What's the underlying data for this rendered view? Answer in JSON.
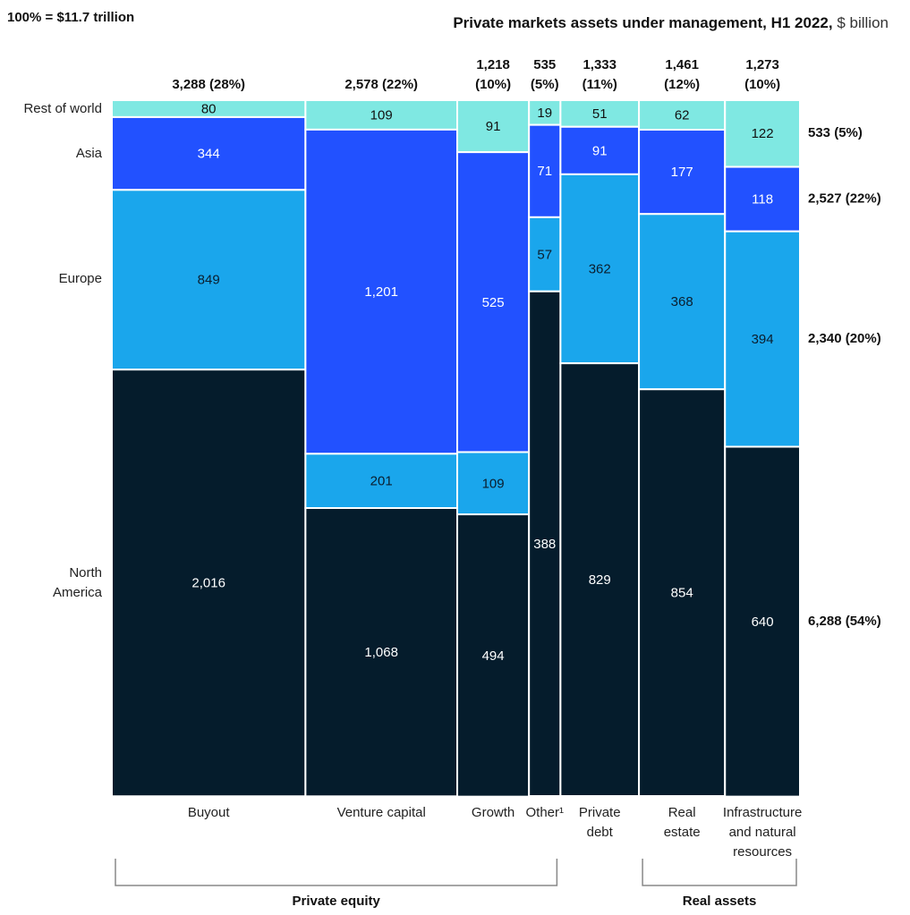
{
  "header": {
    "total_note": "100% = $11.7 trillion",
    "title": "Private markets assets under management, H1 2022,",
    "unit": "$ billion"
  },
  "chart_data": {
    "type": "marimekko",
    "title": "Private markets assets under management, H1 2022",
    "unit": "$ billion",
    "total_label": "100% = $11.7 trillion",
    "segments": [
      "Rest of world",
      "Asia",
      "Europe",
      "North America"
    ],
    "segment_colors": {
      "Rest of world": "#7fe8e2",
      "Asia": "#2251ff",
      "Europe": "#1aa6ec",
      "North America": "#051c2c"
    },
    "categories": [
      {
        "name": "Buyout",
        "label_lines": [
          "Buyout"
        ],
        "total_label": [
          "3,288 (28%)"
        ],
        "total": 3288,
        "values": {
          "Rest of world": 80,
          "Asia": 344,
          "Europe": 849,
          "North America": 2016
        }
      },
      {
        "name": "Venture capital",
        "label_lines": [
          "Venture capital"
        ],
        "total_label": [
          "2,578 (22%)"
        ],
        "total": 2578,
        "values": {
          "Rest of world": 109,
          "Asia": 1201,
          "Europe": 201,
          "North America": 1068
        }
      },
      {
        "name": "Growth",
        "label_lines": [
          "Growth"
        ],
        "total_label": [
          "1,218",
          "(10%)"
        ],
        "total": 1218,
        "values": {
          "Rest of world": 91,
          "Asia": 525,
          "Europe": 109,
          "North America": 494
        }
      },
      {
        "name": "Other",
        "label_lines": [
          "Other¹"
        ],
        "total_label": [
          "535",
          "(5%)"
        ],
        "total": 535,
        "values": {
          "Rest of world": 19,
          "Asia": 71,
          "Europe": 57,
          "North America": 388
        }
      },
      {
        "name": "Private debt",
        "label_lines": [
          "Private",
          "debt"
        ],
        "total_label": [
          "1,333",
          "(11%)"
        ],
        "total": 1333,
        "values": {
          "Rest of world": 51,
          "Asia": 91,
          "Europe": 362,
          "North America": 829
        }
      },
      {
        "name": "Real estate",
        "label_lines": [
          "Real",
          "estate"
        ],
        "total_label": [
          "1,461",
          "(12%)"
        ],
        "total": 1461,
        "values": {
          "Rest of world": 62,
          "Asia": 177,
          "Europe": 368,
          "North America": 854
        }
      },
      {
        "name": "Infrastructure and natural resources",
        "label_lines": [
          "Infrastructure",
          "and natural",
          "resources"
        ],
        "total_label": [
          "1,273",
          "(10%)"
        ],
        "total": 1273,
        "values": {
          "Rest of world": 122,
          "Asia": 118,
          "Europe": 394,
          "North America": 640
        }
      }
    ],
    "row_labels": [
      {
        "segment": "Rest of world",
        "lines": [
          "Rest of world"
        ]
      },
      {
        "segment": "Asia",
        "lines": [
          "Asia"
        ]
      },
      {
        "segment": "Europe",
        "lines": [
          "Europe"
        ]
      },
      {
        "segment": "North America",
        "lines": [
          "North",
          "America"
        ]
      }
    ],
    "segment_totals": [
      {
        "segment": "Rest of world",
        "label": "533 (5%)",
        "value": 533
      },
      {
        "segment": "Asia",
        "label": "2,527 (22%)",
        "value": 2527
      },
      {
        "segment": "Europe",
        "label": "2,340 (20%)",
        "value": 2340
      },
      {
        "segment": "North America",
        "label": "6,288 (54%)",
        "value": 6288
      }
    ],
    "groups": [
      {
        "label": "Private equity",
        "from": "Buyout",
        "to": "Other"
      },
      {
        "label": "Real assets",
        "from": "Real estate",
        "to": "Infrastructure and natural resources"
      }
    ]
  }
}
